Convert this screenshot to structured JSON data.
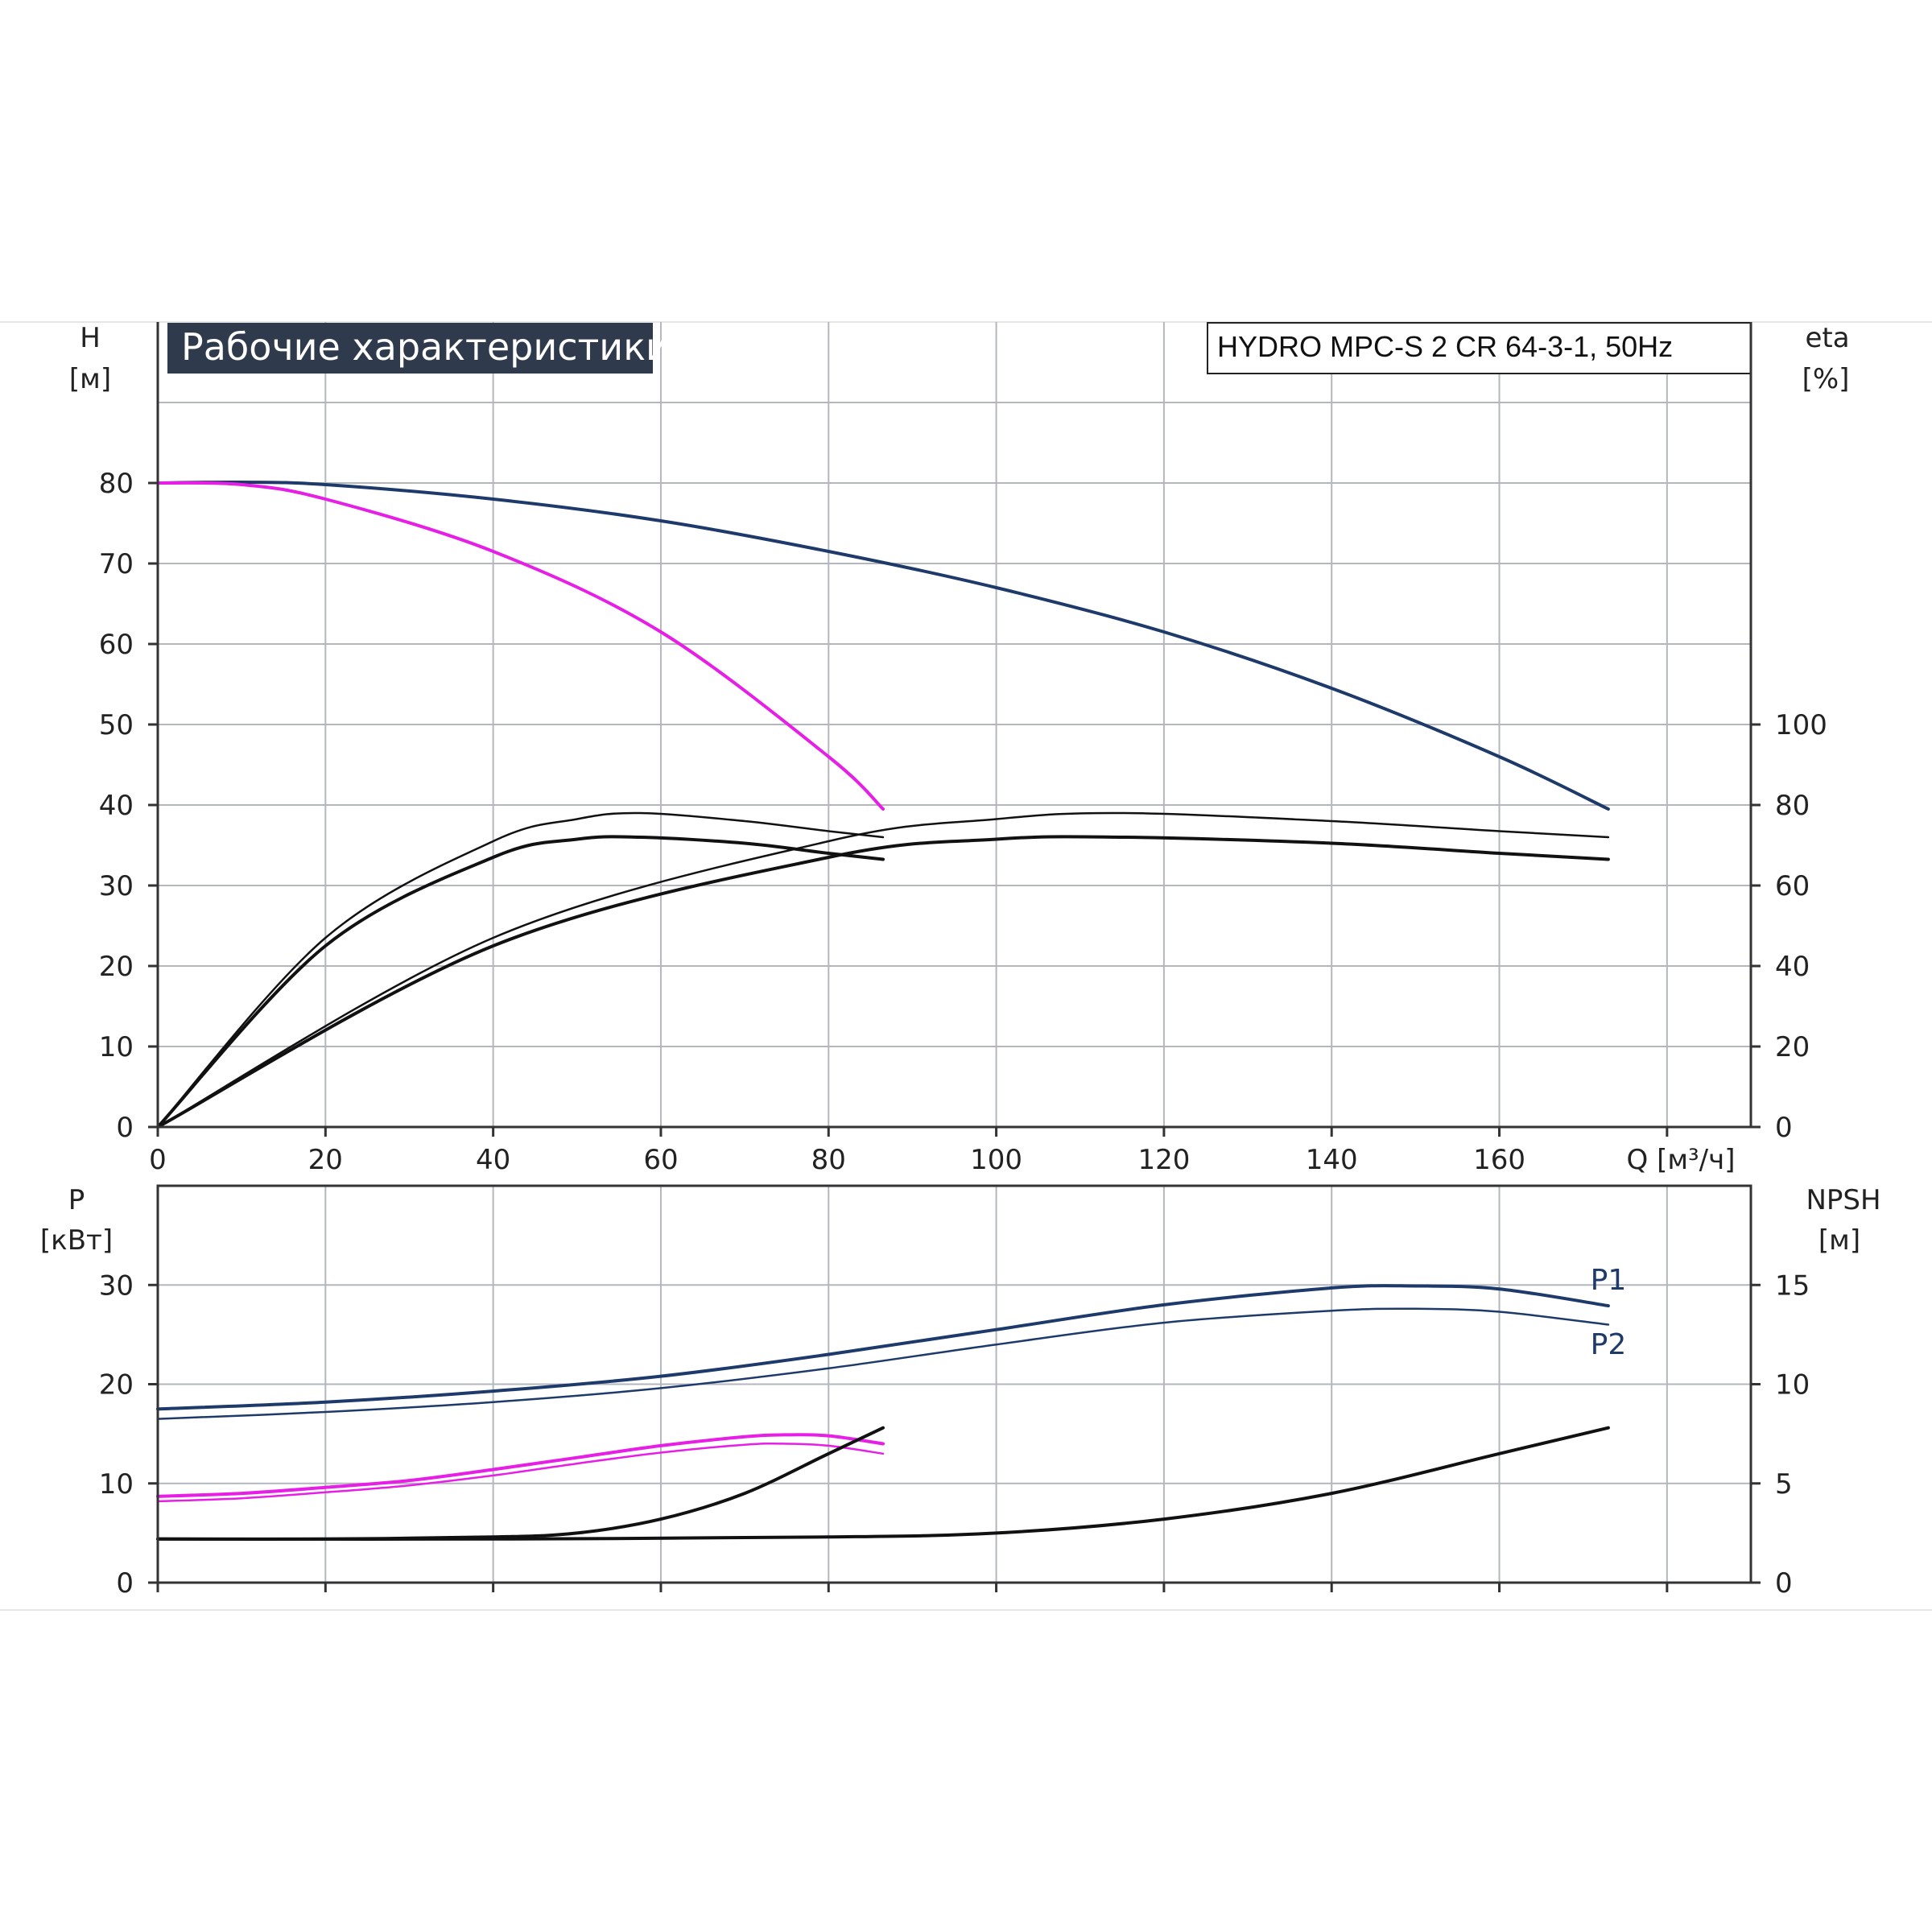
{
  "title": "Рабочие характеристики",
  "model": "HYDRO MPC-S 2 CR 64-3-1, 50Hz",
  "colors": {
    "title_bg": "#2f3b4c",
    "grid": "#b3b7bd",
    "dark_blue": "#1d3a6b",
    "magenta": "#e61ee6",
    "black": "#111111"
  },
  "chart_data": [
    {
      "type": "line",
      "name": "head-efficiency",
      "xlabel": "Q [м³/ч]",
      "ylabel": "H",
      "ylabel_unit": "[м]",
      "y2label": "eta",
      "y2label_unit": "[%]",
      "x_ticks": [
        "0",
        "20",
        "40",
        "60",
        "80",
        "100",
        "120",
        "140",
        "160"
      ],
      "y_ticks": [
        "0",
        "10",
        "20",
        "30",
        "40",
        "50",
        "60",
        "70",
        "80"
      ],
      "y2_ticks": [
        "0",
        "20",
        "40",
        "60",
        "80",
        "100"
      ],
      "xlim": [
        0,
        190
      ],
      "ylim": [
        0,
        100
      ],
      "y2lim": [
        0,
        200
      ],
      "grid": true,
      "series": [
        {
          "axis": "left",
          "color": "#1d3a6b",
          "width": 4,
          "x": [
            0,
            10,
            20,
            40,
            60,
            80,
            100,
            120,
            140,
            160,
            173
          ],
          "y": [
            80,
            80.1,
            79.8,
            78,
            75.3,
            71.5,
            67,
            61.5,
            54.5,
            46,
            39.5
          ]
        },
        {
          "axis": "left",
          "color": "#e61ee6",
          "width": 4,
          "x": [
            0,
            10,
            20,
            40,
            60,
            80,
            86.5
          ],
          "y": [
            80,
            79.8,
            78,
            71.5,
            61.5,
            46,
            39.5
          ]
        },
        {
          "axis": "right",
          "color": "#111111",
          "width": 2.5,
          "x": [
            0,
            20,
            40,
            50,
            57.5,
            70,
            80,
            86.5
          ],
          "y": [
            0,
            47,
            71,
            76.5,
            78,
            76,
            73.5,
            72
          ]
        },
        {
          "axis": "right",
          "color": "#111111",
          "width": 4,
          "x": [
            0,
            20,
            40,
            50,
            57.5,
            70,
            80,
            86.5
          ],
          "y": [
            0,
            45,
            67,
            71.5,
            72,
            70.5,
            68,
            66.5
          ]
        },
        {
          "axis": "right",
          "color": "#111111",
          "width": 2.5,
          "x": [
            0,
            40,
            80,
            100,
            115,
            140,
            160,
            173
          ],
          "y": [
            0,
            47,
            71,
            76.5,
            78,
            76,
            73.5,
            72
          ]
        },
        {
          "axis": "right",
          "color": "#111111",
          "width": 4,
          "x": [
            0,
            40,
            80,
            100,
            115,
            140,
            160,
            173
          ],
          "y": [
            0,
            45,
            67,
            71.5,
            72,
            70.5,
            68,
            66.5
          ]
        }
      ]
    },
    {
      "type": "line",
      "name": "power-npsh",
      "ylabel": "P",
      "ylabel_unit": "[кВт]",
      "y2label": "NPSH",
      "y2label_unit": "[м]",
      "y_ticks": [
        "0",
        "10",
        "20",
        "30"
      ],
      "y2_ticks": [
        "0",
        "5",
        "10",
        "15"
      ],
      "xlim": [
        0,
        190
      ],
      "ylim": [
        0,
        40
      ],
      "y2lim": [
        0,
        20
      ],
      "grid": true,
      "series": [
        {
          "axis": "left",
          "name": "P1",
          "color": "#1d3a6b",
          "width": 4,
          "x": [
            0,
            20,
            40,
            60,
            80,
            100,
            120,
            140,
            150,
            160,
            173
          ],
          "y": [
            17.5,
            18.2,
            19.3,
            20.8,
            23,
            25.5,
            28,
            29.7,
            29.9,
            29.6,
            27.9
          ]
        },
        {
          "axis": "left",
          "name": "P2",
          "color": "#1d3a6b",
          "width": 2.5,
          "x": [
            0,
            20,
            40,
            60,
            80,
            100,
            120,
            140,
            150,
            160,
            173
          ],
          "y": [
            16.5,
            17.2,
            18.2,
            19.6,
            21.6,
            24,
            26.2,
            27.4,
            27.6,
            27.3,
            26
          ]
        },
        {
          "axis": "left",
          "color": "#e61ee6",
          "width": 4,
          "x": [
            0,
            10,
            20,
            30,
            40,
            50,
            60,
            70,
            75,
            80,
            86.5
          ],
          "y": [
            8.7,
            9,
            9.6,
            10.3,
            11.4,
            12.6,
            13.8,
            14.7,
            14.9,
            14.8,
            14
          ]
        },
        {
          "axis": "left",
          "color": "#e61ee6",
          "width": 2.5,
          "x": [
            0,
            10,
            20,
            30,
            40,
            50,
            60,
            70,
            75,
            80,
            86.5
          ],
          "y": [
            8.2,
            8.5,
            9.1,
            9.8,
            10.8,
            12,
            13.1,
            13.9,
            14,
            13.8,
            13
          ]
        },
        {
          "axis": "right",
          "color": "#111111",
          "width": 4,
          "x": [
            0,
            20,
            40,
            50,
            60,
            70,
            80,
            86.5
          ],
          "y": [
            2.2,
            2.2,
            2.3,
            2.5,
            3.2,
            4.5,
            6.5,
            7.8
          ]
        },
        {
          "axis": "right",
          "color": "#111111",
          "width": 4,
          "x": [
            0,
            40,
            80,
            100,
            120,
            140,
            160,
            173
          ],
          "y": [
            2.2,
            2.2,
            2.3,
            2.5,
            3.2,
            4.5,
            6.5,
            7.8
          ]
        }
      ],
      "labels": [
        {
          "text": "P1",
          "x": 173,
          "y": 30.5,
          "color": "#1d3a6b"
        },
        {
          "text": "P2",
          "x": 173,
          "y": 24,
          "color": "#1d3a6b"
        }
      ]
    }
  ]
}
